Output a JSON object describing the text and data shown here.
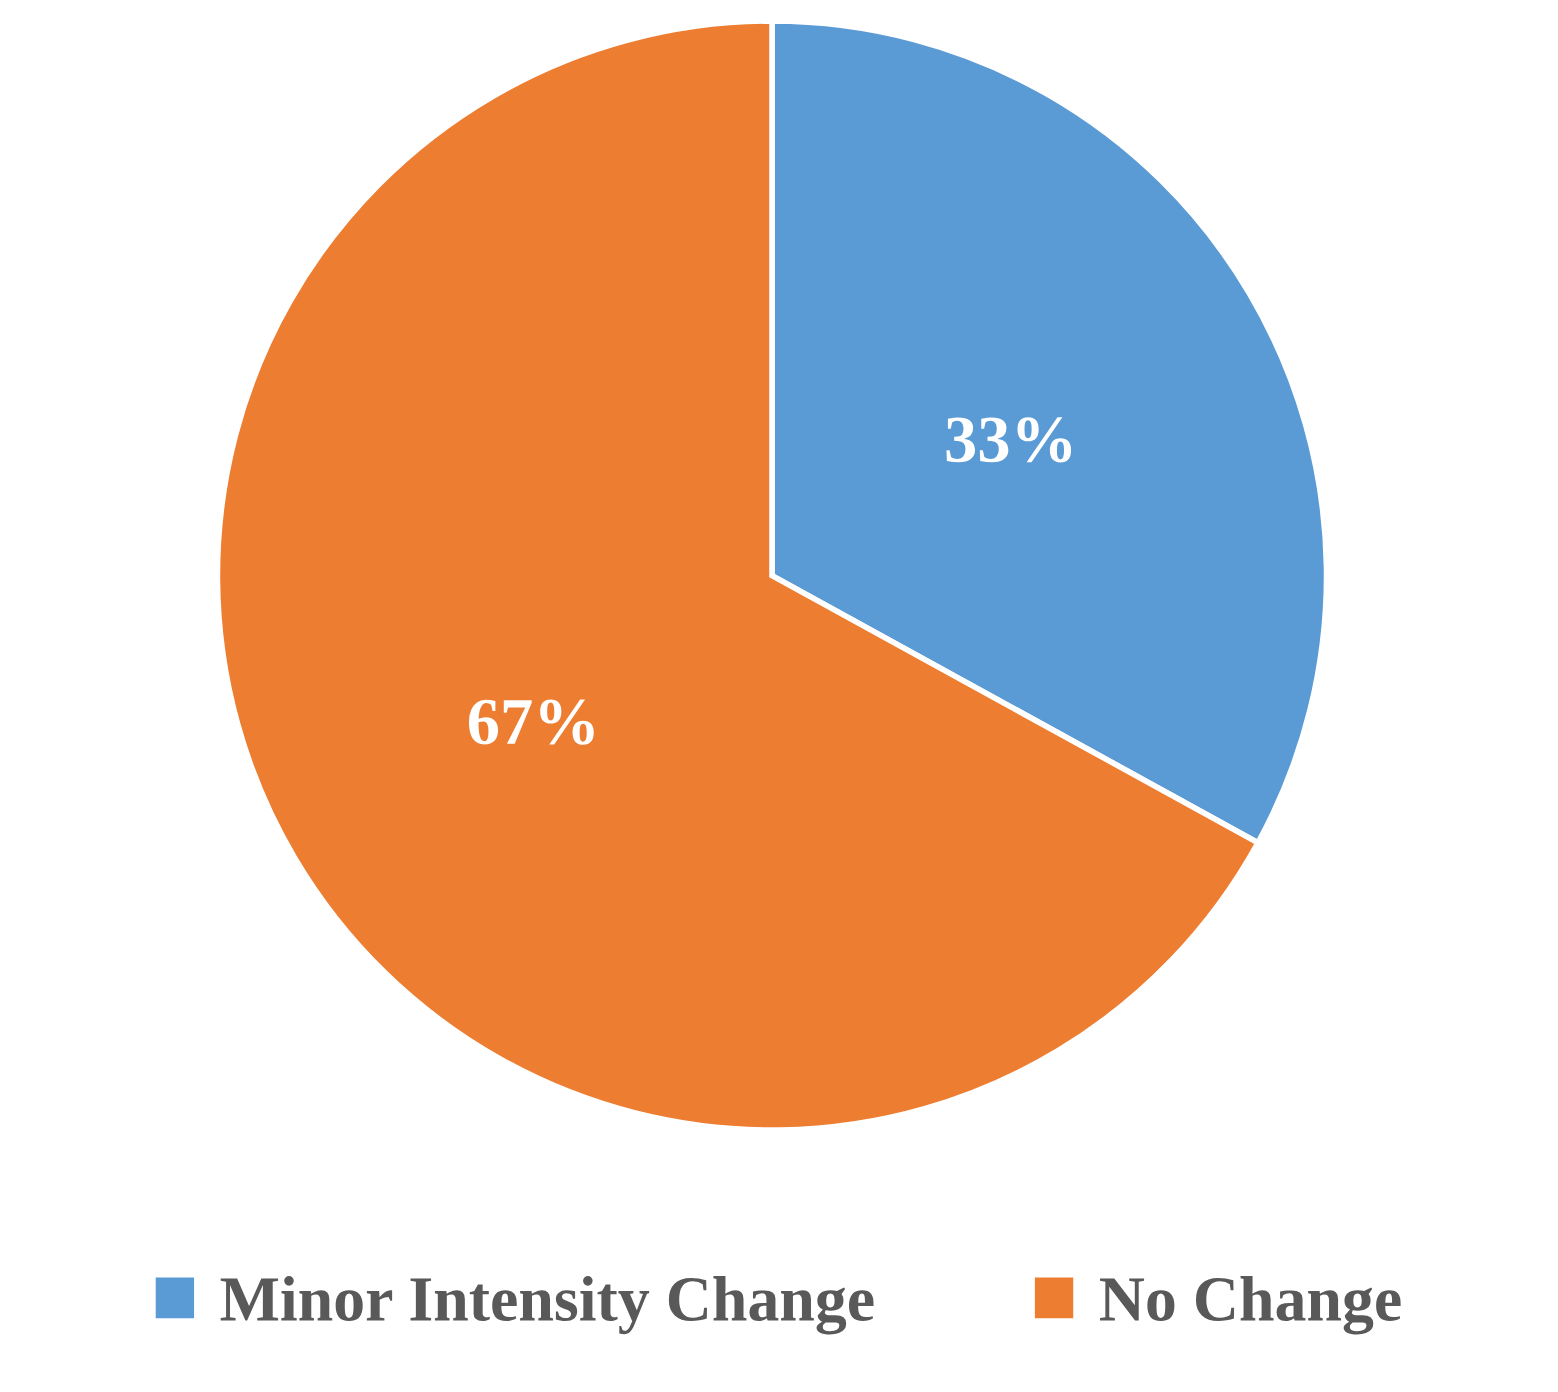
{
  "chart_data": {
    "type": "pie",
    "categories": [
      "Minor Intensity Change",
      "No Change"
    ],
    "values": [
      33,
      67
    ],
    "colors": [
      "#5b9bd5",
      "#ed7d31"
    ],
    "value_labels": [
      "33%",
      "67%"
    ],
    "legend": "bottom"
  }
}
